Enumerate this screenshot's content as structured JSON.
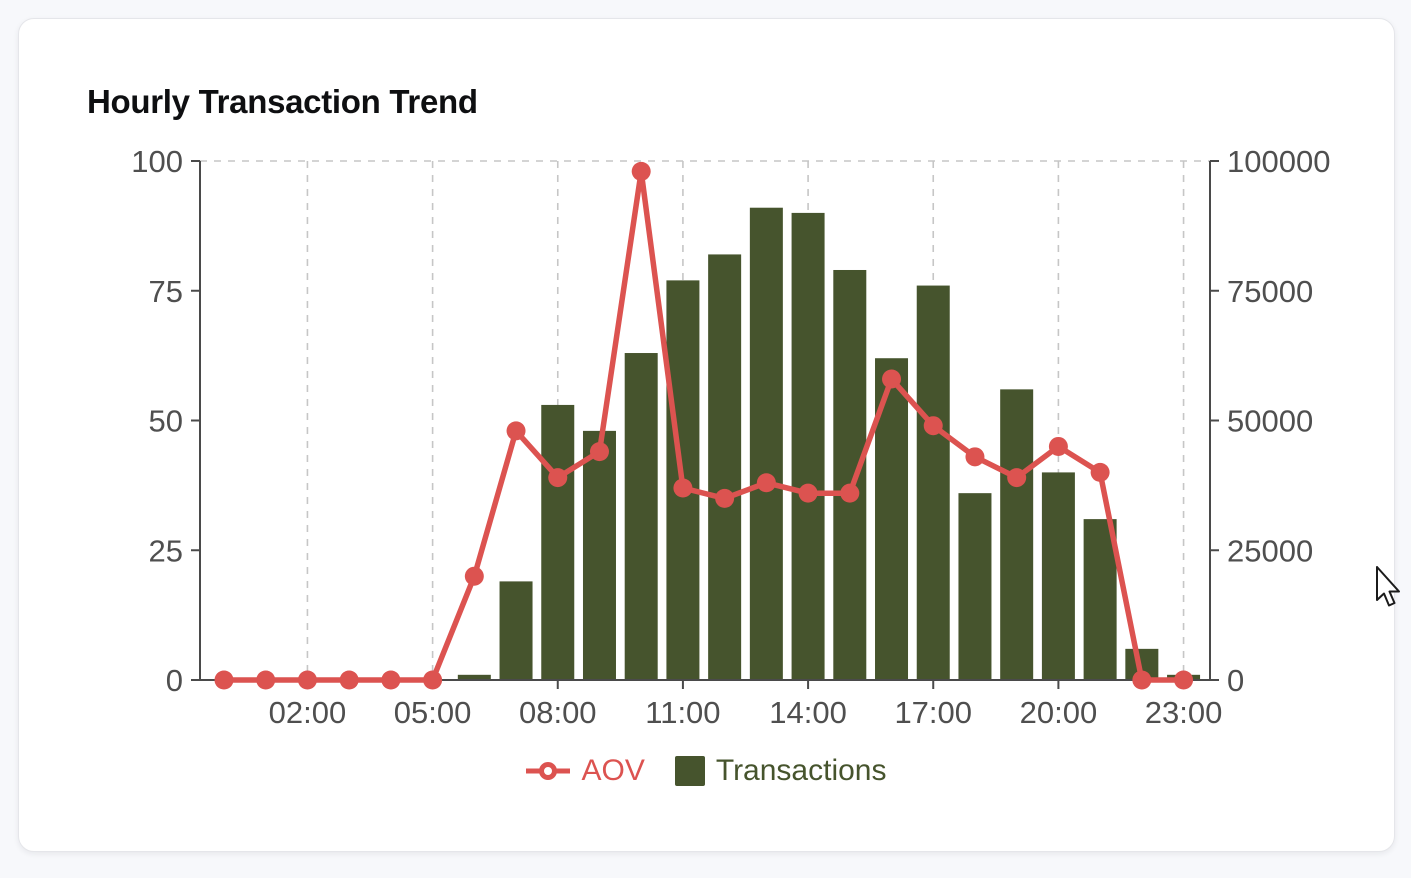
{
  "card": {
    "title": "Hourly Transaction Trend"
  },
  "chart_data": {
    "type": "combo",
    "title": "Hourly Transaction Trend",
    "categories": [
      "00:00",
      "01:00",
      "02:00",
      "03:00",
      "04:00",
      "05:00",
      "06:00",
      "07:00",
      "08:00",
      "09:00",
      "10:00",
      "11:00",
      "12:00",
      "13:00",
      "14:00",
      "15:00",
      "16:00",
      "17:00",
      "18:00",
      "19:00",
      "20:00",
      "21:00",
      "22:00",
      "23:00"
    ],
    "x_tick_labels": [
      "02:00",
      "05:00",
      "08:00",
      "11:00",
      "14:00",
      "17:00",
      "20:00",
      "23:00"
    ],
    "series": [
      {
        "name": "AOV",
        "type": "line",
        "axis": "left",
        "color": "#dc5350",
        "values": [
          0,
          0,
          0,
          0,
          0,
          0,
          20,
          48,
          39,
          44,
          98,
          37,
          35,
          38,
          36,
          36,
          58,
          49,
          43,
          39,
          45,
          40,
          0,
          0
        ]
      },
      {
        "name": "Transactions",
        "type": "bar",
        "axis": "right",
        "color": "#46542d",
        "values": [
          0,
          0,
          0,
          0,
          0,
          0,
          1000,
          19000,
          53000,
          48000,
          63000,
          77000,
          82000,
          91000,
          90000,
          79000,
          62000,
          76000,
          36000,
          56000,
          40000,
          31000,
          6000,
          1000
        ]
      }
    ],
    "left_axis": {
      "min": 0,
      "max": 100,
      "ticks": [
        0,
        25,
        50,
        75,
        100
      ]
    },
    "right_axis": {
      "min": 0,
      "max": 100000,
      "ticks": [
        0,
        25000,
        50000,
        75000,
        100000
      ]
    },
    "legend": {
      "position": "bottom"
    },
    "grid": {
      "vertical_dashed_at_labeled_ticks": true,
      "top_boundary_dashed": true,
      "horizontal_gridlines": false
    }
  },
  "cursor": {
    "visible": true
  }
}
